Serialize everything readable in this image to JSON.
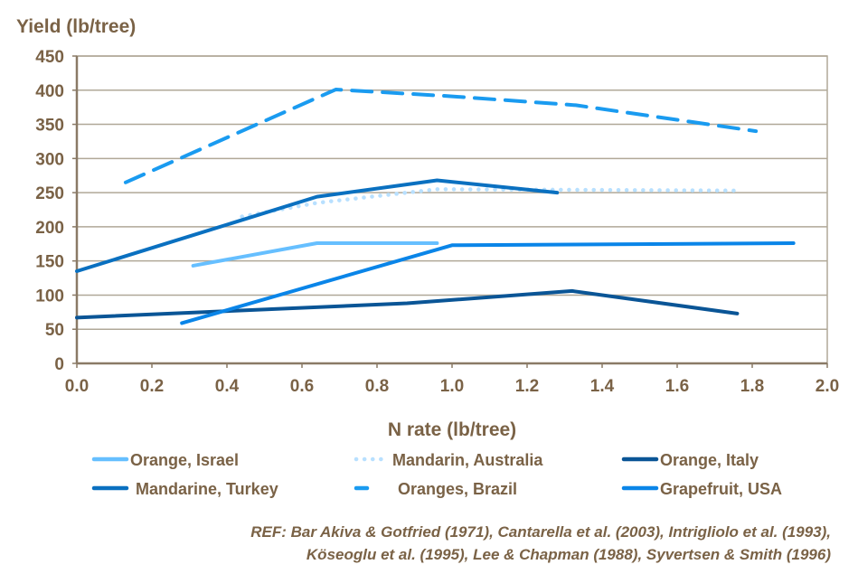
{
  "chart_data": {
    "type": "line",
    "ylabel": "Yield (lb/tree)",
    "xlabel": "N rate (lb/tree)",
    "xlim": [
      0,
      2.0
    ],
    "ylim": [
      0,
      450
    ],
    "xticks": [
      "0.0",
      "0.2",
      "0.4",
      "0.6",
      "0.8",
      "1.0",
      "1.2",
      "1.4",
      "1.6",
      "1.8",
      "2.0"
    ],
    "yticks": [
      "0",
      "50",
      "100",
      "150",
      "200",
      "250",
      "300",
      "350",
      "400",
      "450"
    ],
    "grid": "horizontal",
    "legend_placement": "bottom",
    "series": [
      {
        "name": "Orange, Israel",
        "color": "#66bfff",
        "style": "solid",
        "points": [
          [
            0.31,
            143
          ],
          [
            0.64,
            176
          ],
          [
            0.96,
            176
          ]
        ]
      },
      {
        "name": "Mandarin, Australia",
        "color": "#b8e0ff",
        "style": "dotted",
        "points": [
          [
            0.44,
            215
          ],
          [
            0.64,
            235
          ],
          [
            0.96,
            255
          ],
          [
            1.76,
            253
          ]
        ]
      },
      {
        "name": "Orange, Italy",
        "color": "#0a5596",
        "style": "solid",
        "points": [
          [
            0.0,
            67
          ],
          [
            0.88,
            88
          ],
          [
            1.32,
            106
          ],
          [
            1.76,
            73
          ]
        ]
      },
      {
        "name": "Mandarine, Turkey",
        "color": "#0a70c0",
        "style": "solid",
        "points": [
          [
            0.0,
            135
          ],
          [
            0.64,
            244
          ],
          [
            0.96,
            268
          ],
          [
            1.28,
            250
          ]
        ]
      },
      {
        "name": "Oranges, Brazil",
        "color": "#1a9bf0",
        "style": "dashed",
        "points": [
          [
            0.13,
            265
          ],
          [
            0.69,
            401
          ],
          [
            1.0,
            391
          ],
          [
            1.33,
            378
          ],
          [
            1.81,
            340
          ]
        ]
      },
      {
        "name": "Grapefruit, USA",
        "color": "#0a85e8",
        "style": "solid",
        "points": [
          [
            0.28,
            59
          ],
          [
            1.0,
            173
          ],
          [
            1.91,
            176
          ]
        ]
      }
    ],
    "reference": [
      "REF: Bar Akiva & Gotfried  (1971), Cantarella et al. (2003), Intrigliolo et al. (1993),",
      "Köseoglu et al. (1995), Lee & Chapman (1988), Syvertsen & Smith (1996)"
    ]
  }
}
